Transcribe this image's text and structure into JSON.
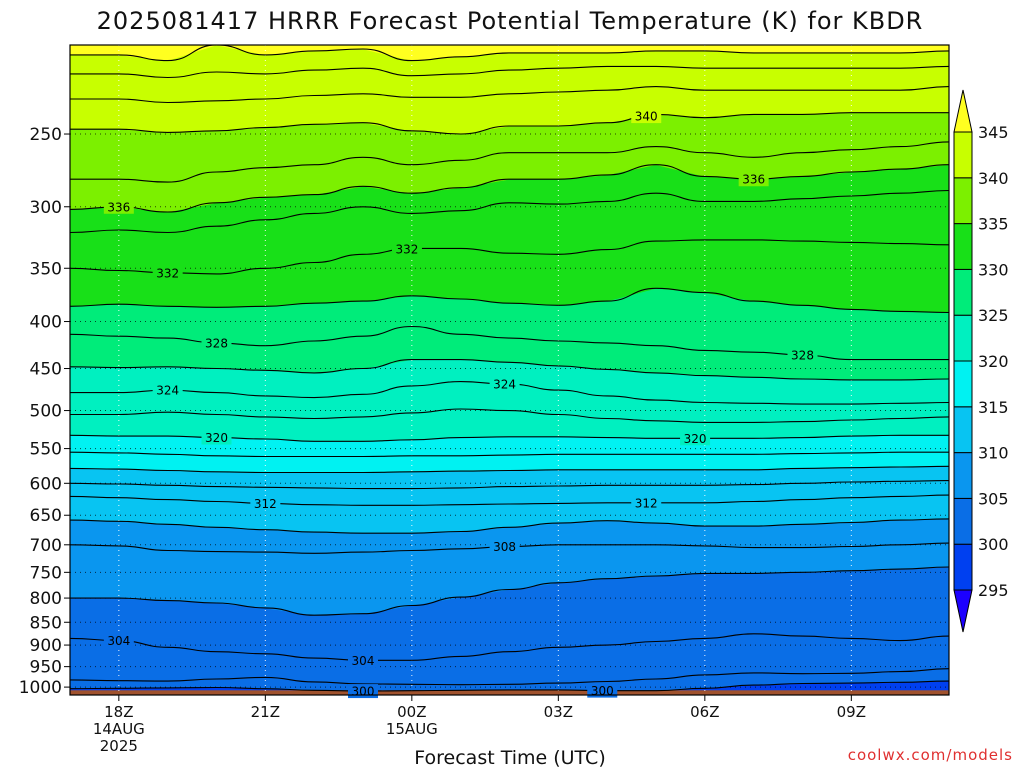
{
  "chart_data": {
    "type": "contour",
    "title": "2025081417 HRRR Forecast Potential Temperature (K) for KBDR",
    "xlabel": "Forecast Time (UTC)",
    "ylabel": "",
    "y_scale": "log",
    "y_inverted": true,
    "ylim": [
      1020,
      200
    ],
    "y_ticks": [
      250,
      300,
      350,
      400,
      450,
      500,
      550,
      600,
      650,
      700,
      750,
      800,
      850,
      900,
      950,
      1000
    ],
    "x_hours": [
      0,
      1,
      2,
      3,
      4,
      5,
      6,
      7,
      8,
      9,
      10,
      11,
      12,
      13,
      14,
      15,
      16,
      17,
      18
    ],
    "x_ticks": [
      {
        "hour": 1,
        "lines": [
          "18Z",
          "14AUG",
          "2025"
        ]
      },
      {
        "hour": 4,
        "lines": [
          "21Z"
        ]
      },
      {
        "hour": 7,
        "lines": [
          "00Z",
          "15AUG"
        ]
      },
      {
        "hour": 10,
        "lines": [
          "03Z"
        ]
      },
      {
        "hour": 13,
        "lines": [
          "06Z"
        ]
      },
      {
        "hour": 16,
        "lines": [
          "09Z"
        ]
      }
    ],
    "colorbar": {
      "levels": [
        295,
        300,
        305,
        310,
        315,
        320,
        325,
        330,
        335,
        340,
        345
      ],
      "colors": [
        "#1c00ff",
        "#0040f0",
        "#0a6ee6",
        "#0a96ef",
        "#08c4f2",
        "#00f2f2",
        "#00f0c0",
        "#00ec7a",
        "#18e018",
        "#7cf000",
        "#c8ff00",
        "#ffff20"
      ]
    },
    "contour_interval": 2,
    "isentropes": [
      {
        "theta": 300,
        "p": [
          1004,
          1003,
          1002,
          1001,
          1004,
          1008,
          1010,
          1009,
          1008,
          1007,
          1007,
          1009,
          1009,
          1003,
          995,
          991,
          990,
          988,
          985
        ]
      },
      {
        "theta": 302,
        "p": [
          982,
          984,
          985,
          980,
          976,
          987,
          992,
          993,
          994,
          993,
          990,
          986,
          980,
          970,
          965,
          967,
          966,
          962,
          955
        ]
      },
      {
        "theta": 304,
        "p": [
          885,
          890,
          905,
          915,
          920,
          930,
          935,
          935,
          926,
          915,
          905,
          900,
          892,
          885,
          875,
          880,
          885,
          890,
          880
        ]
      },
      {
        "theta": 306,
        "p": [
          800,
          800,
          805,
          810,
          820,
          835,
          832,
          815,
          798,
          783,
          770,
          762,
          757,
          752,
          752,
          750,
          747,
          744,
          740
        ]
      },
      {
        "theta": 308,
        "p": [
          700,
          702,
          710,
          712,
          713,
          715,
          713,
          710,
          707,
          703,
          700,
          700,
          700,
          702,
          705,
          705,
          703,
          700,
          697
        ]
      },
      {
        "theta": 310,
        "p": [
          658,
          660,
          665,
          670,
          674,
          678,
          680,
          680,
          677,
          670,
          663,
          659,
          663,
          668,
          668,
          665,
          662,
          658,
          656
        ]
      },
      {
        "theta": 312,
        "p": [
          620,
          622,
          625,
          628,
          631,
          633,
          634,
          634,
          633,
          632,
          631,
          630,
          630,
          630,
          628,
          625,
          622,
          620,
          618
        ]
      },
      {
        "theta": 314,
        "p": [
          600,
          601,
          603,
          605,
          606,
          607,
          608,
          608,
          607,
          605,
          604,
          603,
          603,
          603,
          602,
          600,
          598,
          597,
          596
        ]
      },
      {
        "theta": 316,
        "p": [
          578,
          579,
          581,
          583,
          584,
          584,
          584,
          583,
          582,
          581,
          580,
          580,
          580,
          580,
          580,
          578,
          577,
          576,
          575
        ]
      },
      {
        "theta": 318,
        "p": [
          555,
          556,
          558,
          560,
          561,
          561,
          561,
          560,
          560,
          559,
          558,
          558,
          558,
          558,
          558,
          557,
          556,
          555,
          555
        ]
      },
      {
        "theta": 320,
        "p": [
          532,
          533,
          533,
          535,
          537,
          540,
          540,
          538,
          535,
          534,
          534,
          535,
          536,
          536,
          536,
          535,
          533,
          532,
          532
        ]
      },
      {
        "theta": 322,
        "p": [
          505,
          505,
          502,
          505,
          508,
          510,
          508,
          503,
          498,
          500,
          505,
          510,
          513,
          515,
          515,
          514,
          512,
          510,
          508
        ]
      },
      {
        "theta": 324,
        "p": [
          478,
          478,
          475,
          478,
          482,
          484,
          480,
          470,
          465,
          468,
          475,
          482,
          487,
          490,
          491,
          492,
          492,
          491,
          490
        ]
      },
      {
        "theta": 326,
        "p": [
          448,
          449,
          448,
          450,
          452,
          455,
          450,
          440,
          440,
          443,
          447,
          451,
          455,
          458,
          460,
          462,
          463,
          463,
          462
        ]
      },
      {
        "theta": 328,
        "p": [
          413,
          415,
          417,
          422,
          425,
          420,
          415,
          405,
          413,
          417,
          420,
          422,
          425,
          430,
          432,
          435,
          440,
          440,
          440
        ]
      },
      {
        "theta": 330,
        "p": [
          385,
          383,
          385,
          386,
          385,
          382,
          380,
          375,
          378,
          382,
          384,
          380,
          368,
          372,
          380,
          384,
          388,
          390,
          391
        ]
      },
      {
        "theta": 332,
        "p": [
          350,
          352,
          354,
          355,
          350,
          345,
          338,
          333,
          333,
          337,
          338,
          334,
          327,
          326,
          326,
          327,
          328,
          329,
          330
        ]
      },
      {
        "theta": 334,
        "p": [
          320,
          318,
          320,
          315,
          310,
          305,
          300,
          305,
          303,
          297,
          298,
          296,
          290,
          296,
          296,
          294,
          292,
          290,
          288
        ]
      },
      {
        "theta": 336,
        "p": [
          302,
          300,
          304,
          297,
          293,
          291,
          285,
          290,
          286,
          280,
          280,
          277,
          270,
          278,
          280,
          278,
          275,
          273,
          270
        ]
      },
      {
        "theta": 338,
        "p": [
          280,
          280,
          282,
          275,
          272,
          270,
          265,
          270,
          267,
          262,
          262,
          262,
          258,
          262,
          265,
          262,
          260,
          258,
          255
        ]
      },
      {
        "theta": 340,
        "p": [
          247,
          247,
          249,
          248,
          246,
          244,
          243,
          248,
          250,
          245,
          245,
          243,
          238,
          240,
          238,
          238,
          237,
          237,
          237
        ]
      },
      {
        "theta": 342,
        "p": [
          229,
          229,
          231,
          230,
          229,
          227,
          226,
          228,
          228,
          226,
          225,
          224,
          222,
          224,
          224,
          224,
          224,
          224,
          222
        ]
      },
      {
        "theta": 344,
        "p": [
          215,
          215,
          217,
          214,
          215,
          213,
          212,
          216,
          215,
          213,
          212,
          211,
          211,
          212,
          212,
          212,
          212,
          212,
          211
        ]
      },
      {
        "theta": 346,
        "p": [
          205,
          205,
          208,
          200,
          205,
          203,
          202,
          208,
          206,
          204,
          204,
          204,
          203,
          203,
          204,
          204,
          204,
          204,
          203
        ]
      }
    ],
    "contour_labels": [
      {
        "theta": 340,
        "hour": 11.8
      },
      {
        "theta": 336,
        "hour": 14.0
      },
      {
        "theta": 336,
        "hour": 1.0
      },
      {
        "theta": 332,
        "hour": 6.9
      },
      {
        "theta": 332,
        "hour": 2.0
      },
      {
        "theta": 328,
        "hour": 3.0
      },
      {
        "theta": 328,
        "hour": 15.0
      },
      {
        "theta": 324,
        "hour": 2.0
      },
      {
        "theta": 324,
        "hour": 8.9
      },
      {
        "theta": 320,
        "hour": 3.0
      },
      {
        "theta": 320,
        "hour": 12.8
      },
      {
        "theta": 312,
        "hour": 4.0
      },
      {
        "theta": 312,
        "hour": 11.8
      },
      {
        "theta": 308,
        "hour": 8.9
      },
      {
        "theta": 304,
        "hour": 1.0
      },
      {
        "theta": 304,
        "hour": 6.0
      },
      {
        "theta": 300,
        "hour": 6.0
      },
      {
        "theta": 300,
        "hour": 10.9
      }
    ],
    "ground_color": "#a0522d",
    "grid": true
  },
  "credit": "coolwx.com/models"
}
